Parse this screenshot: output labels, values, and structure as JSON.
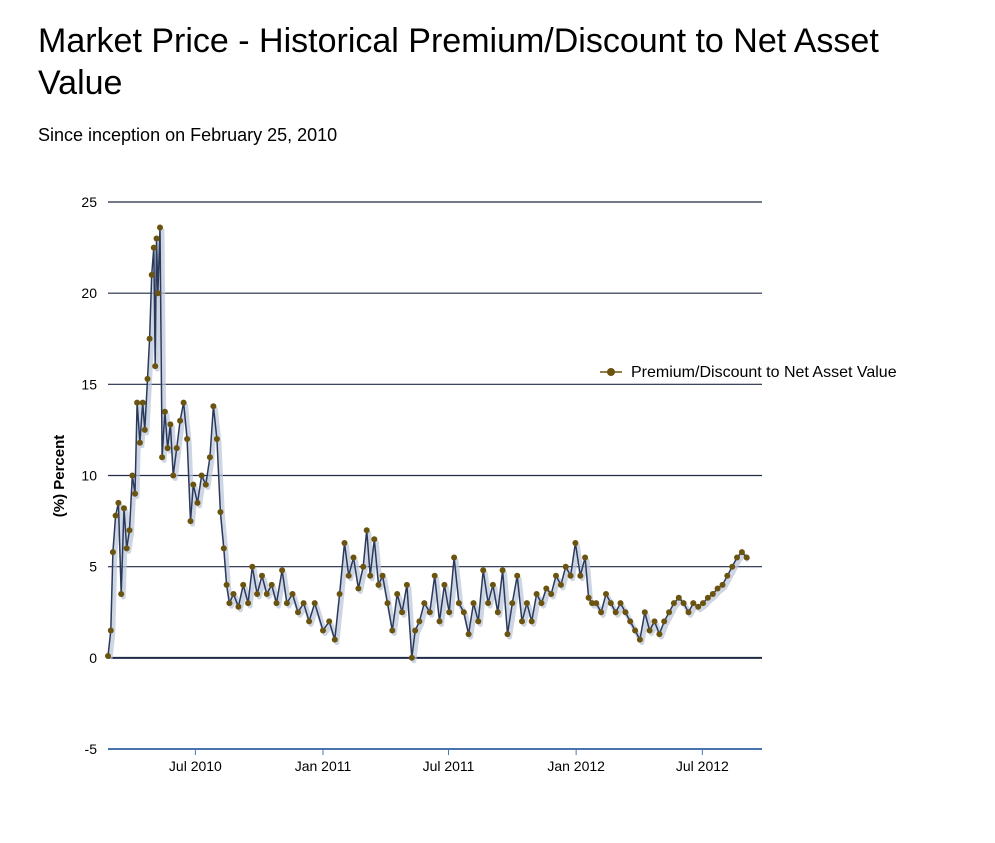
{
  "title": "Market Price - Historical Premium/Discount to Net Asset Value",
  "subtitle": "Since inception on February 25, 2010",
  "colors": {
    "line": "#2b3a5c",
    "marker": "#6b5310",
    "grid": "#1f2a44",
    "shadow": "#b9c4d8"
  },
  "chart_data": {
    "type": "line",
    "title": "Market Price - Historical Premium/Discount to Net Asset Value",
    "subtitle": "Since inception on February 25, 2010",
    "xlabel": "",
    "ylabel": "(%) Percent",
    "ylim": [
      -5,
      25
    ],
    "yticks": [
      "25",
      "20",
      "15",
      "10",
      "5",
      "0",
      "-5"
    ],
    "yticks_values": [
      25,
      20,
      15,
      10,
      5,
      0,
      -5
    ],
    "xlim": [
      "2010-02-25",
      "2012-09-25"
    ],
    "xticks": [
      {
        "label": "Jul 2010",
        "date": "2010-07-01"
      },
      {
        "label": "Jan 2011",
        "date": "2011-01-01"
      },
      {
        "label": "Jul 2011",
        "date": "2011-07-01"
      },
      {
        "label": "Jan 2012",
        "date": "2012-01-01"
      },
      {
        "label": "Jul 2012",
        "date": "2012-07-01"
      }
    ],
    "grid": true,
    "legend_position": "right",
    "series": [
      {
        "name": "Premium/Discount to Net Asset Value",
        "points": [
          [
            "2010-02-25",
            0.1
          ],
          [
            "2010-03-01",
            1.5
          ],
          [
            "2010-03-04",
            5.8
          ],
          [
            "2010-03-08",
            7.8
          ],
          [
            "2010-03-12",
            8.5
          ],
          [
            "2010-03-16",
            3.5
          ],
          [
            "2010-03-20",
            8.2
          ],
          [
            "2010-03-24",
            6.0
          ],
          [
            "2010-03-28",
            7.0
          ],
          [
            "2010-04-01",
            10.0
          ],
          [
            "2010-04-05",
            9.0
          ],
          [
            "2010-04-08",
            14.0
          ],
          [
            "2010-04-12",
            11.8
          ],
          [
            "2010-04-16",
            14.0
          ],
          [
            "2010-04-19",
            12.5
          ],
          [
            "2010-04-23",
            15.3
          ],
          [
            "2010-04-26",
            17.5
          ],
          [
            "2010-04-29",
            21.0
          ],
          [
            "2010-05-02",
            22.5
          ],
          [
            "2010-05-04",
            16.0
          ],
          [
            "2010-05-06",
            23.0
          ],
          [
            "2010-05-08",
            20.0
          ],
          [
            "2010-05-11",
            23.6
          ],
          [
            "2010-05-14",
            11.0
          ],
          [
            "2010-05-18",
            13.5
          ],
          [
            "2010-05-22",
            11.5
          ],
          [
            "2010-05-26",
            12.8
          ],
          [
            "2010-05-30",
            10.0
          ],
          [
            "2010-06-04",
            11.5
          ],
          [
            "2010-06-09",
            13.0
          ],
          [
            "2010-06-14",
            14.0
          ],
          [
            "2010-06-19",
            12.0
          ],
          [
            "2010-06-24",
            7.5
          ],
          [
            "2010-06-28",
            9.5
          ],
          [
            "2010-07-04",
            8.5
          ],
          [
            "2010-07-10",
            10.0
          ],
          [
            "2010-07-16",
            9.5
          ],
          [
            "2010-07-22",
            11.0
          ],
          [
            "2010-07-27",
            13.8
          ],
          [
            "2010-08-01",
            12.0
          ],
          [
            "2010-08-06",
            8.0
          ],
          [
            "2010-08-11",
            6.0
          ],
          [
            "2010-08-15",
            4.0
          ],
          [
            "2010-08-19",
            3.0
          ],
          [
            "2010-08-25",
            3.5
          ],
          [
            "2010-09-01",
            2.8
          ],
          [
            "2010-09-08",
            4.0
          ],
          [
            "2010-09-15",
            3.0
          ],
          [
            "2010-09-21",
            5.0
          ],
          [
            "2010-09-28",
            3.5
          ],
          [
            "2010-10-05",
            4.5
          ],
          [
            "2010-10-12",
            3.5
          ],
          [
            "2010-10-19",
            4.0
          ],
          [
            "2010-10-26",
            3.0
          ],
          [
            "2010-11-03",
            4.8
          ],
          [
            "2010-11-10",
            3.0
          ],
          [
            "2010-11-18",
            3.5
          ],
          [
            "2010-11-26",
            2.5
          ],
          [
            "2010-12-04",
            3.0
          ],
          [
            "2010-12-12",
            2.0
          ],
          [
            "2010-12-20",
            3.0
          ],
          [
            "2011-01-01",
            1.5
          ],
          [
            "2011-01-10",
            2.0
          ],
          [
            "2011-01-18",
            1.0
          ],
          [
            "2011-01-25",
            3.5
          ],
          [
            "2011-02-01",
            6.3
          ],
          [
            "2011-02-07",
            4.5
          ],
          [
            "2011-02-14",
            5.5
          ],
          [
            "2011-02-21",
            3.8
          ],
          [
            "2011-02-28",
            5.0
          ],
          [
            "2011-03-05",
            7.0
          ],
          [
            "2011-03-10",
            4.5
          ],
          [
            "2011-03-16",
            6.5
          ],
          [
            "2011-03-22",
            4.0
          ],
          [
            "2011-03-28",
            4.5
          ],
          [
            "2011-04-04",
            3.0
          ],
          [
            "2011-04-11",
            1.5
          ],
          [
            "2011-04-18",
            3.5
          ],
          [
            "2011-04-25",
            2.5
          ],
          [
            "2011-05-02",
            4.0
          ],
          [
            "2011-05-09",
            0.0
          ],
          [
            "2011-05-14",
            1.5
          ],
          [
            "2011-05-20",
            2.0
          ],
          [
            "2011-05-27",
            3.0
          ],
          [
            "2011-06-04",
            2.5
          ],
          [
            "2011-06-11",
            4.5
          ],
          [
            "2011-06-18",
            2.0
          ],
          [
            "2011-06-25",
            4.0
          ],
          [
            "2011-07-02",
            2.5
          ],
          [
            "2011-07-09",
            5.5
          ],
          [
            "2011-07-16",
            3.0
          ],
          [
            "2011-07-23",
            2.5
          ],
          [
            "2011-07-30",
            1.3
          ],
          [
            "2011-08-06",
            3.0
          ],
          [
            "2011-08-13",
            2.0
          ],
          [
            "2011-08-20",
            4.8
          ],
          [
            "2011-08-27",
            3.0
          ],
          [
            "2011-09-03",
            4.0
          ],
          [
            "2011-09-10",
            2.5
          ],
          [
            "2011-09-17",
            4.8
          ],
          [
            "2011-09-24",
            1.3
          ],
          [
            "2011-10-01",
            3.0
          ],
          [
            "2011-10-08",
            4.5
          ],
          [
            "2011-10-15",
            2.0
          ],
          [
            "2011-10-22",
            3.0
          ],
          [
            "2011-10-29",
            2.0
          ],
          [
            "2011-11-05",
            3.5
          ],
          [
            "2011-11-12",
            3.0
          ],
          [
            "2011-11-19",
            3.8
          ],
          [
            "2011-11-26",
            3.5
          ],
          [
            "2011-12-03",
            4.5
          ],
          [
            "2011-12-10",
            4.0
          ],
          [
            "2011-12-17",
            5.0
          ],
          [
            "2011-12-24",
            4.5
          ],
          [
            "2011-12-31",
            6.3
          ],
          [
            "2012-01-07",
            4.5
          ],
          [
            "2012-01-14",
            5.5
          ],
          [
            "2012-01-19",
            3.3
          ],
          [
            "2012-01-24",
            3.0
          ],
          [
            "2012-01-30",
            3.0
          ],
          [
            "2012-02-06",
            2.5
          ],
          [
            "2012-02-13",
            3.5
          ],
          [
            "2012-02-20",
            3.0
          ],
          [
            "2012-02-27",
            2.5
          ],
          [
            "2012-03-05",
            3.0
          ],
          [
            "2012-03-12",
            2.5
          ],
          [
            "2012-03-19",
            2.0
          ],
          [
            "2012-03-26",
            1.5
          ],
          [
            "2012-04-02",
            1.0
          ],
          [
            "2012-04-09",
            2.5
          ],
          [
            "2012-04-16",
            1.5
          ],
          [
            "2012-04-23",
            2.0
          ],
          [
            "2012-04-30",
            1.3
          ],
          [
            "2012-05-07",
            2.0
          ],
          [
            "2012-05-14",
            2.5
          ],
          [
            "2012-05-21",
            3.0
          ],
          [
            "2012-05-28",
            3.3
          ],
          [
            "2012-06-04",
            3.0
          ],
          [
            "2012-06-11",
            2.5
          ],
          [
            "2012-06-18",
            3.0
          ],
          [
            "2012-06-25",
            2.8
          ],
          [
            "2012-07-02",
            3.0
          ],
          [
            "2012-07-09",
            3.3
          ],
          [
            "2012-07-16",
            3.5
          ],
          [
            "2012-07-23",
            3.8
          ],
          [
            "2012-07-30",
            4.0
          ],
          [
            "2012-08-06",
            4.5
          ],
          [
            "2012-08-13",
            5.0
          ],
          [
            "2012-08-20",
            5.5
          ],
          [
            "2012-08-27",
            5.8
          ],
          [
            "2012-09-03",
            5.5
          ]
        ]
      }
    ]
  }
}
